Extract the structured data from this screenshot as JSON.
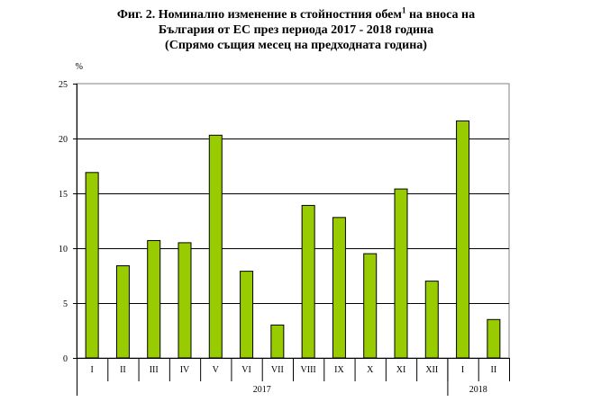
{
  "title": {
    "line1_prefix": "Фиг. 2. Номинално изменение в стойностния обем",
    "line1_sup": "1",
    "line1_suffix": " на вноса на",
    "line2": "България от ЕС през периода 2017 - 2018 година",
    "line3": "(Спрямо същия месец на предходната година)"
  },
  "chart_data": {
    "type": "bar",
    "ylabel": "%",
    "ylim": [
      0,
      25
    ],
    "yticks": [
      0,
      5,
      10,
      15,
      20,
      25
    ],
    "grid": true,
    "bar_color": "#99cc00",
    "categories": [
      "I",
      "II",
      "III",
      "IV",
      "V",
      "VI",
      "VII",
      "VIII",
      "IX",
      "X",
      "XI",
      "XII",
      "I",
      "II"
    ],
    "values": [
      16.9,
      8.4,
      10.7,
      10.5,
      20.3,
      7.9,
      3.0,
      13.9,
      12.8,
      9.5,
      15.4,
      7.0,
      21.6,
      3.5
    ],
    "groups": [
      {
        "label": "2017",
        "count": 12
      },
      {
        "label": "2018",
        "count": 2
      }
    ]
  }
}
